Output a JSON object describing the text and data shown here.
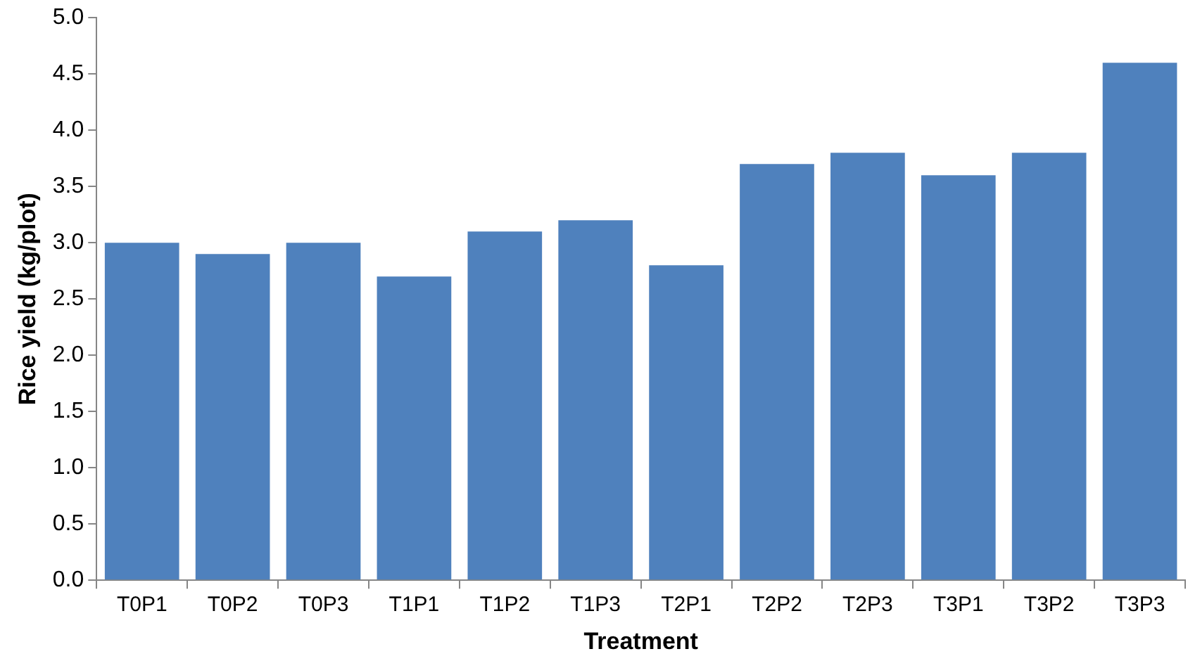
{
  "chart_data": {
    "type": "bar",
    "xlabel": "Treatment",
    "ylabel": "Rice yield (kg/plot)",
    "categories": [
      "T0P1",
      "T0P2",
      "T0P3",
      "T1P1",
      "T1P2",
      "T1P3",
      "T2P1",
      "T2P2",
      "T2P3",
      "T3P1",
      "T3P2",
      "T3P3"
    ],
    "values": [
      3.0,
      2.9,
      3.0,
      2.7,
      3.1,
      3.2,
      2.8,
      3.7,
      3.8,
      3.6,
      3.8,
      4.6
    ],
    "color": "#4f81bd",
    "ylim": [
      0,
      5
    ],
    "yticks": [
      {
        "value": 0,
        "label": "0.0"
      },
      {
        "value": 0.5,
        "label": "0.5"
      },
      {
        "value": 1,
        "label": "1.0"
      },
      {
        "value": 1.5,
        "label": "1.5"
      },
      {
        "value": 2,
        "label": "2.0"
      },
      {
        "value": 2.5,
        "label": "2.5"
      },
      {
        "value": 3,
        "label": "3.0"
      },
      {
        "value": 3.5,
        "label": "3.5"
      },
      {
        "value": 4,
        "label": "4.0"
      },
      {
        "value": 4.5,
        "label": "4.5"
      },
      {
        "value": 5,
        "label": "5.0"
      }
    ],
    "grid": false,
    "legend": false
  }
}
